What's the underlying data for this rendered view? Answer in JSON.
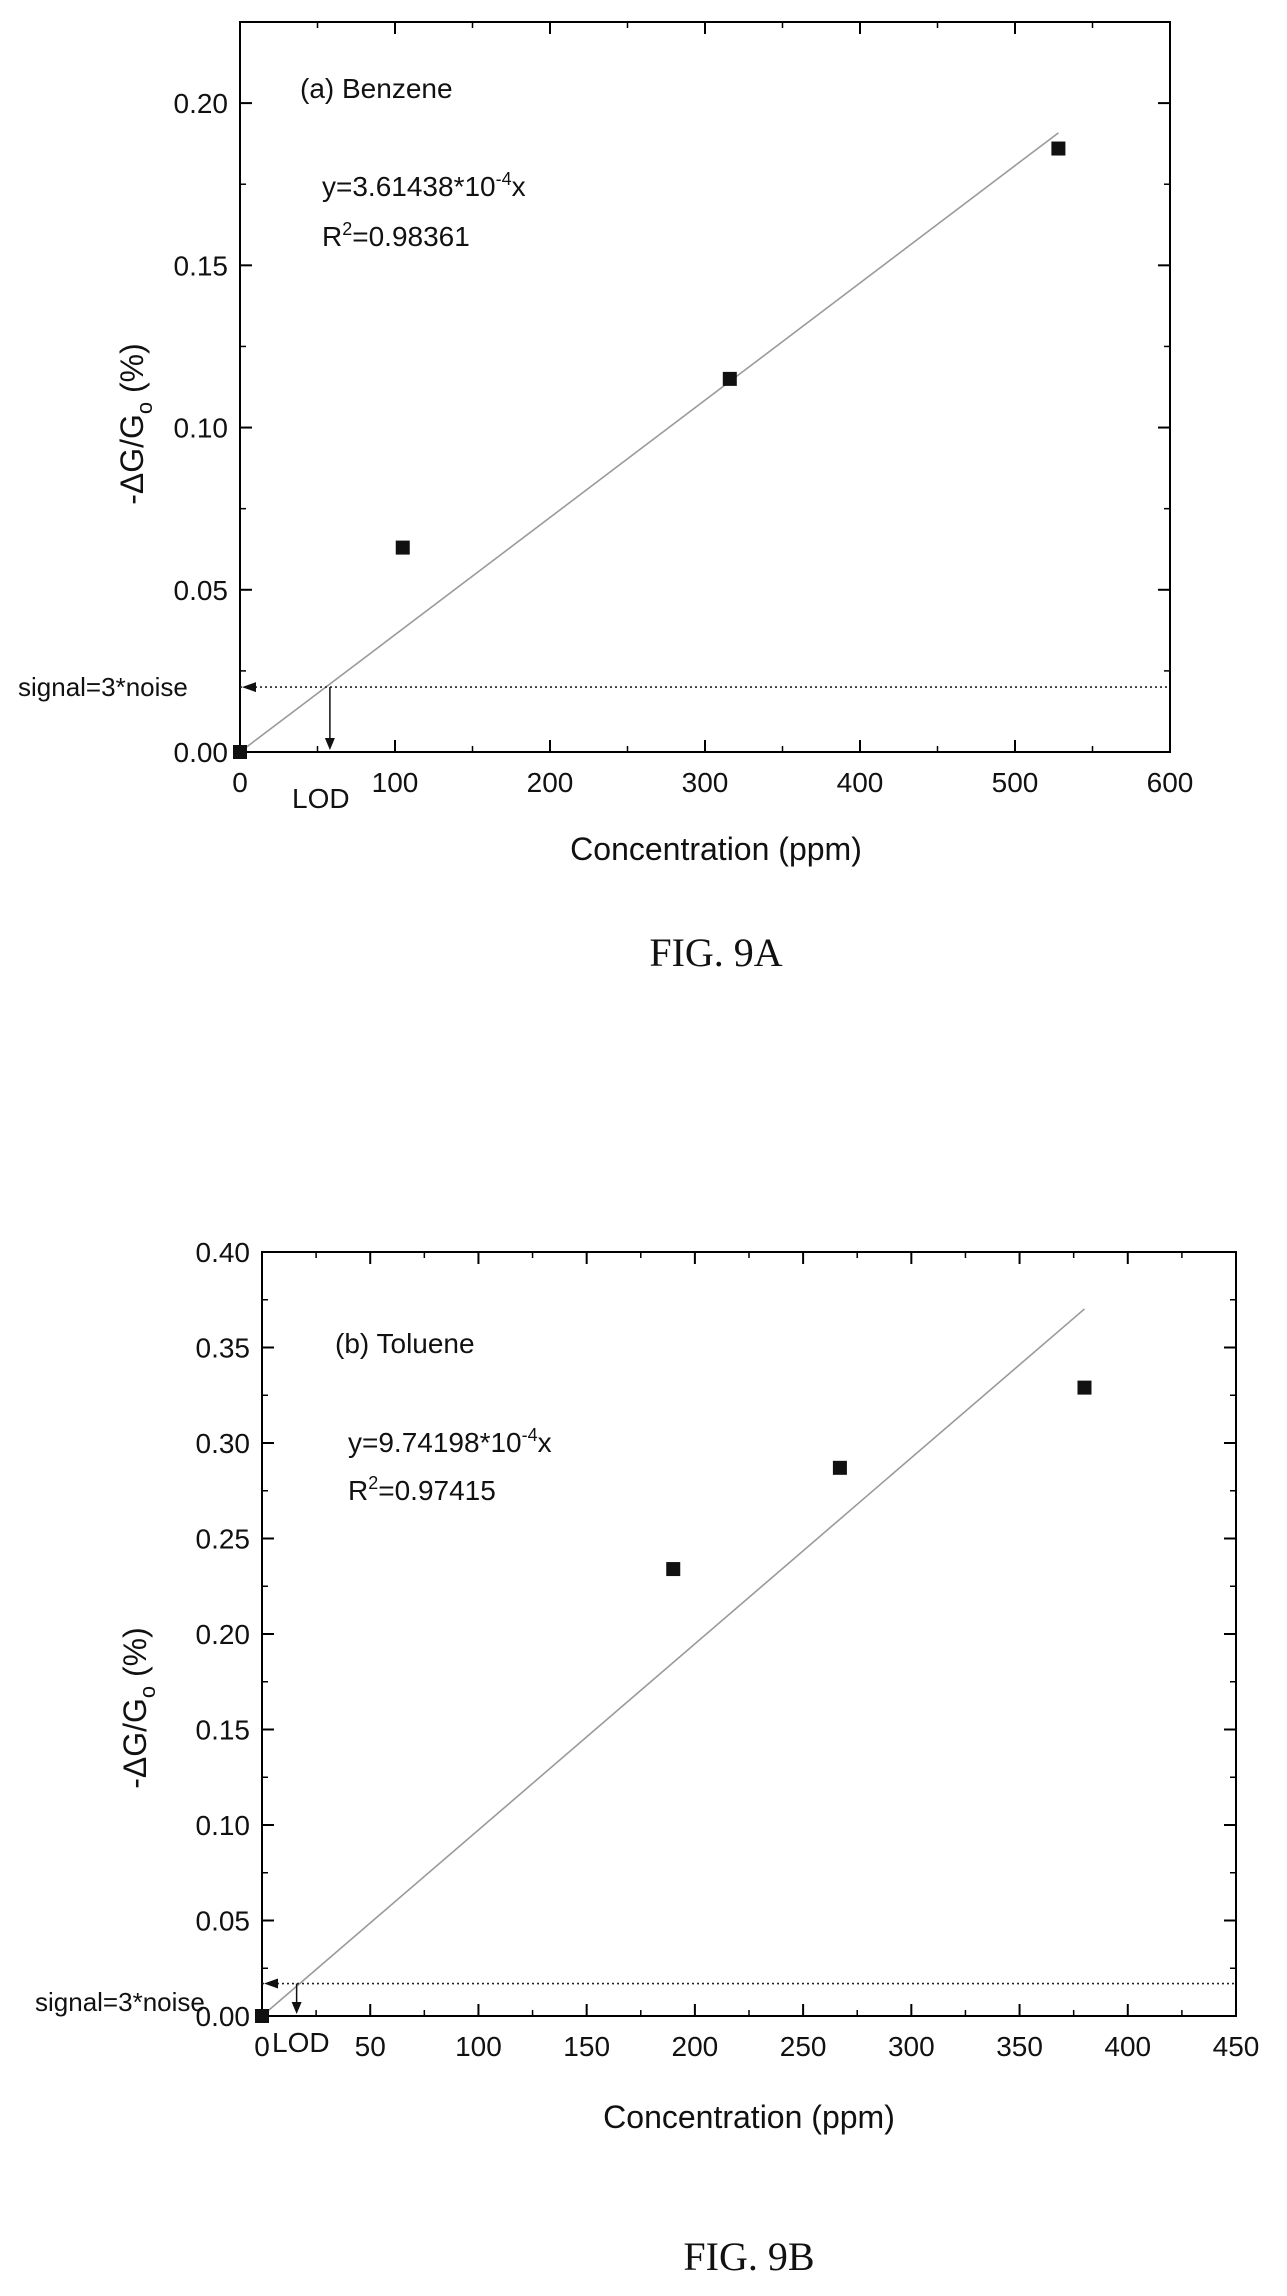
{
  "chart_data": [
    {
      "type": "scatter",
      "panel_label": "(a) Benzene",
      "equation": {
        "prefix": "y=3.61438*10",
        "exp": "-4",
        "suffix": "x"
      },
      "r2": {
        "base": "R",
        "exp": "2",
        "value": "=0.98361"
      },
      "ylabel": {
        "base": "-ΔG/G",
        "sub": "o",
        "suffix": " (%)"
      },
      "xlabel": "Concentration (ppm)",
      "caption": "FIG. 9A",
      "xlim": [
        0,
        600
      ],
      "ylim": [
        0,
        0.225
      ],
      "xticks": [
        0,
        100,
        200,
        300,
        400,
        500,
        600
      ],
      "xticklabels": [
        "0",
        "100",
        "200",
        "300",
        "400",
        "500",
        "600"
      ],
      "yticks": [
        0,
        0.05,
        0.1,
        0.15,
        0.2
      ],
      "yticklabels": [
        "0.00",
        "0.05",
        "0.10",
        "0.15",
        "0.20"
      ],
      "series": [
        {
          "x": [
            0,
            105,
            316,
            528
          ],
          "y": [
            0,
            0.063,
            0.115,
            0.186
          ]
        }
      ],
      "fit": {
        "slope": 0.000361438,
        "x": [
          0,
          528
        ]
      },
      "threshold": {
        "label": "signal=3*noise",
        "y": 0.02
      },
      "lod": {
        "label": "LOD",
        "x": 58
      },
      "grid": false,
      "axis_color": "#000000",
      "fit_color": "#9a9a9a"
    },
    {
      "type": "scatter",
      "panel_label": "(b) Toluene",
      "equation": {
        "prefix": "y=9.74198*10",
        "exp": "-4",
        "suffix": "x"
      },
      "r2": {
        "base": "R",
        "exp": "2",
        "value": "=0.97415"
      },
      "ylabel": {
        "base": "-ΔG/G",
        "sub": "o",
        "suffix": " (%)"
      },
      "xlabel": "Concentration (ppm)",
      "caption": "FIG. 9B",
      "xlim": [
        0,
        450
      ],
      "ylim": [
        0,
        0.4
      ],
      "xticks": [
        0,
        50,
        100,
        150,
        200,
        250,
        300,
        350,
        400,
        450
      ],
      "xticklabels": [
        "0",
        "50",
        "100",
        "150",
        "200",
        "250",
        "300",
        "350",
        "400",
        "450"
      ],
      "yticks": [
        0,
        0.05,
        0.1,
        0.15,
        0.2,
        0.25,
        0.3,
        0.35,
        0.4
      ],
      "yticklabels": [
        "0.00",
        "0.05",
        "0.10",
        "0.15",
        "0.20",
        "0.25",
        "0.30",
        "0.35",
        "0.40"
      ],
      "series": [
        {
          "x": [
            0,
            190,
            267,
            380
          ],
          "y": [
            0,
            0.234,
            0.287,
            0.329
          ]
        }
      ],
      "fit": {
        "slope": 0.000974198,
        "x": [
          0,
          380
        ]
      },
      "threshold": {
        "label": "signal=3*noise",
        "y": 0.017
      },
      "lod": {
        "label": "LOD",
        "x": 16
      },
      "grid": false,
      "axis_color": "#000000",
      "fit_color": "#9a9a9a"
    }
  ]
}
